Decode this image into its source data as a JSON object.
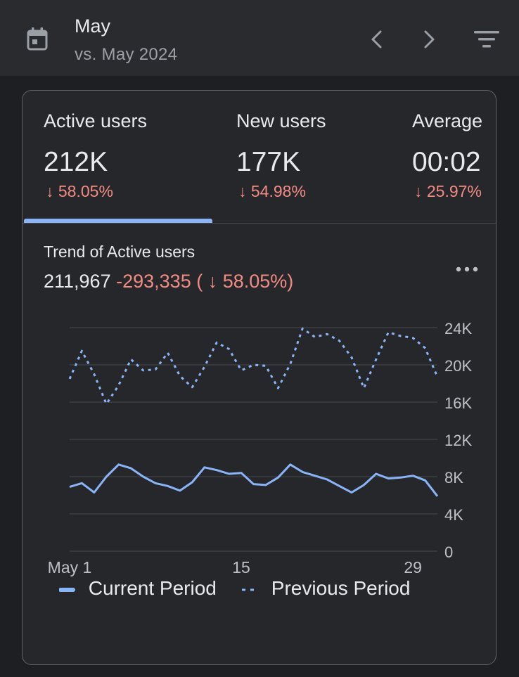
{
  "header": {
    "title": "May",
    "subtitle": "vs. May 2024"
  },
  "metrics": [
    {
      "label": "Active users",
      "value": "212K",
      "change": "↓ 58.05%"
    },
    {
      "label": "New users",
      "value": "177K",
      "change": "↓ 54.98%"
    },
    {
      "label": "Average",
      "value": "00:02",
      "change": "↓ 25.97%"
    }
  ],
  "trend": {
    "title": "Trend of Active users",
    "total": "211,967",
    "delta": "-293,335 ( ↓ 58.05%)"
  },
  "legend": {
    "current": "Current Period",
    "previous": "Previous Period"
  },
  "colors": {
    "current": "#8ab4f8",
    "previous": "#8ab4f8",
    "negative": "#f28b82"
  },
  "chart_data": {
    "type": "line",
    "x_tick_labels": [
      "May 1",
      "15",
      "29"
    ],
    "x_tick_days": [
      1,
      15,
      29
    ],
    "y_tick_labels": [
      "24K",
      "20K",
      "16K",
      "12K",
      "8K",
      "4K",
      "0"
    ],
    "ylim": [
      0,
      24000
    ],
    "xlim": [
      1,
      31
    ],
    "grid": true,
    "legend_position": "bottom",
    "series": [
      {
        "name": "Current Period",
        "style": "solid",
        "x": [
          1,
          2,
          3,
          4,
          5,
          6,
          7,
          8,
          9,
          10,
          11,
          12,
          13,
          14,
          15,
          16,
          17,
          18,
          19,
          20,
          21,
          22,
          23,
          24,
          25,
          26,
          27,
          28,
          29,
          30,
          31
        ],
        "values": [
          6900,
          7300,
          6300,
          8000,
          9300,
          8900,
          8000,
          7300,
          7000,
          6500,
          7400,
          9000,
          8700,
          8300,
          8400,
          7200,
          7100,
          7900,
          9300,
          8500,
          8100,
          7700,
          7000,
          6300,
          7100,
          8300,
          7800,
          7900,
          8100,
          7600,
          5900
        ]
      },
      {
        "name": "Previous Period",
        "style": "dotted",
        "x": [
          1,
          2,
          3,
          4,
          5,
          6,
          7,
          8,
          9,
          10,
          11,
          12,
          13,
          14,
          15,
          16,
          17,
          18,
          19,
          20,
          21,
          22,
          23,
          24,
          25,
          26,
          27,
          28,
          29,
          30,
          31
        ],
        "values": [
          18500,
          21500,
          19000,
          15800,
          17800,
          20600,
          19400,
          19500,
          21300,
          18800,
          17600,
          19800,
          22400,
          21700,
          19400,
          20000,
          19900,
          17500,
          20100,
          23900,
          23000,
          23300,
          22600,
          20800,
          17500,
          20600,
          23500,
          23100,
          22900,
          21800,
          18700
        ]
      }
    ]
  }
}
